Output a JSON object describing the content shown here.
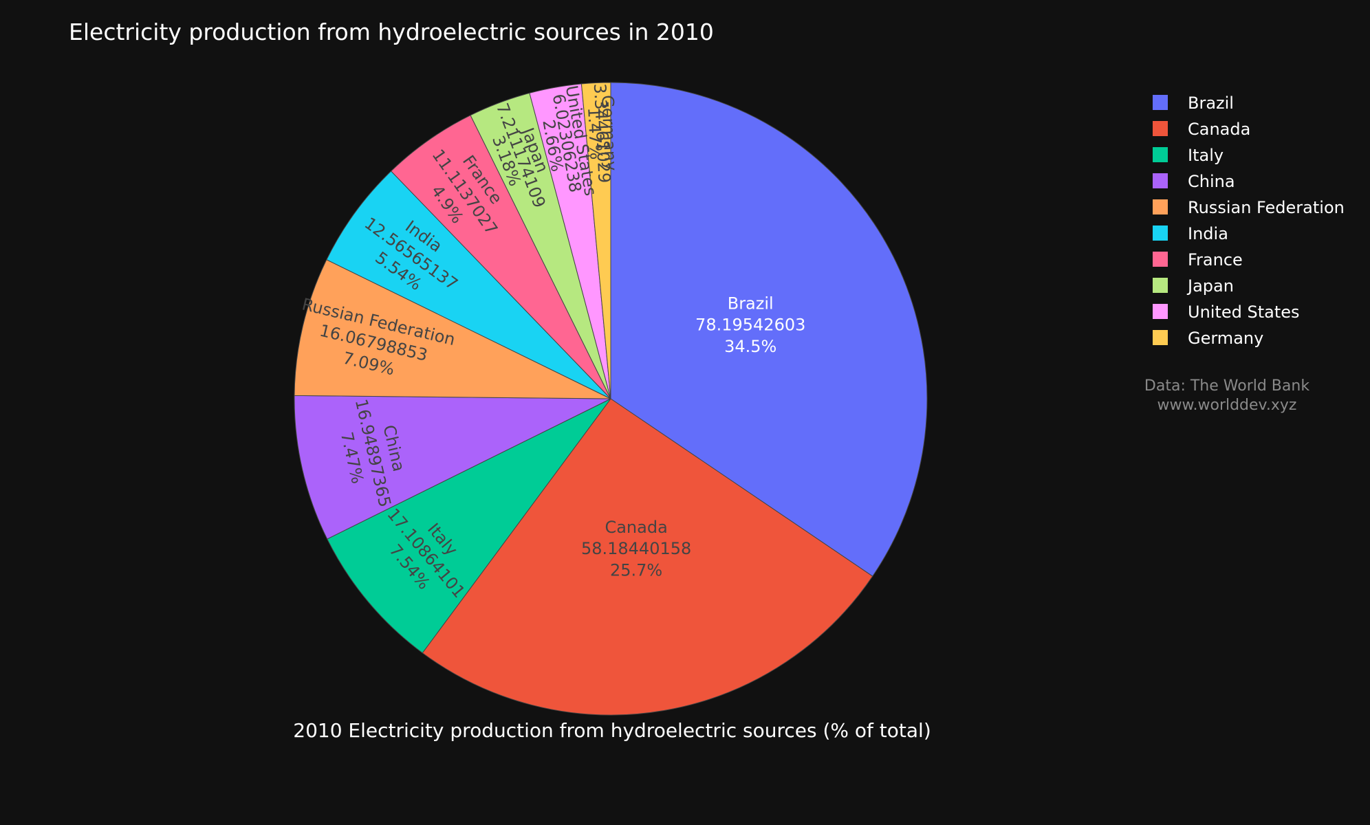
{
  "chart_data": {
    "type": "pie",
    "title": "Electricity production from hydroelectric sources in 2010",
    "xlabel": "2010 Electricity production from hydroelectric sources (% of total)",
    "slices": [
      {
        "label": "Brazil",
        "value": 78.19542603,
        "value_text": "78.19542603",
        "percent": "34.5%",
        "color": "#636efa",
        "text_color": "#ffffff"
      },
      {
        "label": "Canada",
        "value": 58.18440158,
        "value_text": "58.18440158",
        "percent": "25.7%",
        "color": "#ef553b",
        "text_color": "#444444"
      },
      {
        "label": "Italy",
        "value": 17.10864101,
        "value_text": "17.10864101",
        "percent": "7.54%",
        "color": "#00cc96",
        "text_color": "#444444"
      },
      {
        "label": "China",
        "value": 16.94897365,
        "value_text": "16.94897365",
        "percent": "7.47%",
        "color": "#ab63fa",
        "text_color": "#444444"
      },
      {
        "label": "Russian Federation",
        "value": 16.06798853,
        "value_text": "16.06798853",
        "percent": "7.09%",
        "color": "#ffa15a",
        "text_color": "#444444"
      },
      {
        "label": "India",
        "value": 12.56565137,
        "value_text": "12.56565137",
        "percent": "5.54%",
        "color": "#19d3f3",
        "text_color": "#444444"
      },
      {
        "label": "France",
        "value": 11.1137027,
        "value_text": "11.1137027",
        "percent": "4.9%",
        "color": "#ff6692",
        "text_color": "#444444"
      },
      {
        "label": "Japan",
        "value": 7.211174109,
        "value_text": "7.211174109",
        "percent": "3.18%",
        "color": "#b6e880",
        "text_color": "#444444"
      },
      {
        "label": "United States",
        "value": 6.02306238,
        "value_text": "6.02306238",
        "percent": "2.66%",
        "color": "#ff97ff",
        "text_color": "#444444"
      },
      {
        "label": "Germany",
        "value": 3.34461029,
        "value_text": "3.34461029",
        "percent": "1.47%",
        "color": "#fecb52",
        "text_color": "#444444"
      }
    ],
    "legend_position": "right"
  },
  "source": {
    "line1": "Data: The World Bank",
    "line2": "www.worlddev.xyz"
  }
}
